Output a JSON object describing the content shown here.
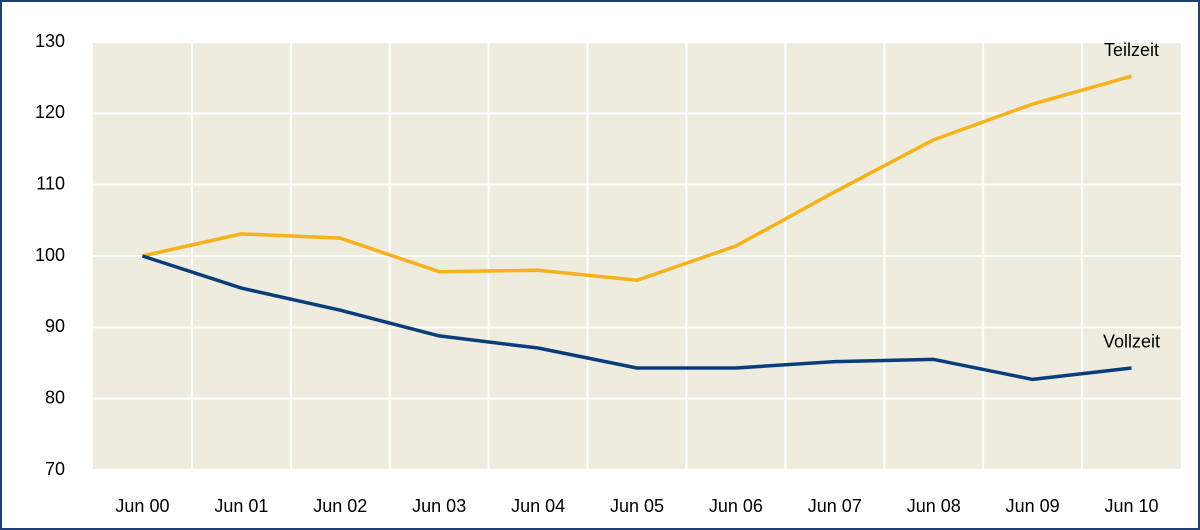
{
  "chart_data": {
    "type": "line",
    "categories": [
      "Jun 00",
      "Jun 01",
      "Jun 02",
      "Jun 03",
      "Jun 04",
      "Jun 05",
      "Jun 06",
      "Jun 07",
      "Jun 08",
      "Jun 09",
      "Jun 10"
    ],
    "series": [
      {
        "name": "Teilzeit",
        "color": "#f5b21a",
        "values": [
          100,
          103.1,
          102.5,
          97.8,
          98.0,
          96.6,
          101.4,
          109.0,
          116.3,
          121.3,
          125.2
        ]
      },
      {
        "name": "Vollzeit",
        "color": "#0a3d7a",
        "values": [
          100,
          95.5,
          92.4,
          88.8,
          87.1,
          84.3,
          84.3,
          85.2,
          85.5,
          82.7,
          84.3
        ]
      }
    ],
    "ylim": [
      70,
      130
    ],
    "yticks": [
      70,
      80,
      90,
      100,
      110,
      120,
      130
    ],
    "grid": true
  }
}
